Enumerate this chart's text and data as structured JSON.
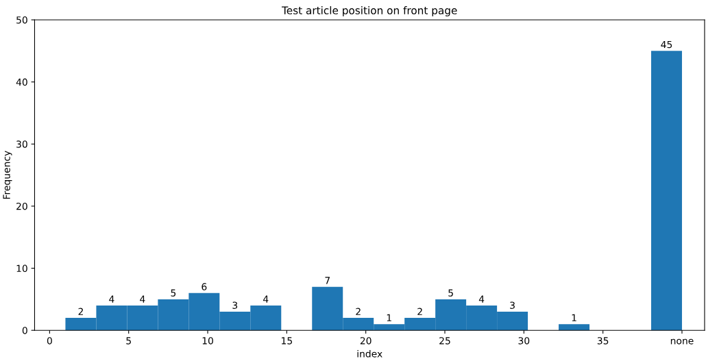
{
  "chart_data": {
    "type": "histogram",
    "title": "Test article position on front page",
    "xlabel": "index",
    "ylabel": "Frequency",
    "bins": [
      1,
      2.95,
      4.9,
      6.85,
      8.8,
      10.75,
      12.7,
      14.65,
      16.6,
      18.55,
      20.5,
      22.45,
      24.4,
      26.35,
      28.3,
      30.25,
      32.2,
      34.15,
      36.1,
      38.05,
      40
    ],
    "values": [
      2,
      4,
      4,
      5,
      6,
      3,
      4,
      0,
      7,
      2,
      1,
      2,
      5,
      4,
      3,
      0,
      1,
      0,
      0,
      45
    ],
    "value_labels": [
      "2",
      "4",
      "4",
      "5",
      "6",
      "3",
      "4",
      null,
      "7",
      "2",
      "1",
      "2",
      "5",
      "4",
      "3",
      null,
      "1",
      null,
      null,
      "45"
    ],
    "color": "#1f77b4",
    "xlim": [
      -0.95,
      41.43
    ],
    "xticks": [
      0,
      5,
      10,
      15,
      20,
      25,
      30,
      35,
      {
        "value": 40,
        "label": "none"
      }
    ],
    "ylim": [
      0,
      50
    ],
    "yticks": [
      0,
      10,
      20,
      30,
      40,
      50
    ],
    "grid": false,
    "legend": false
  }
}
